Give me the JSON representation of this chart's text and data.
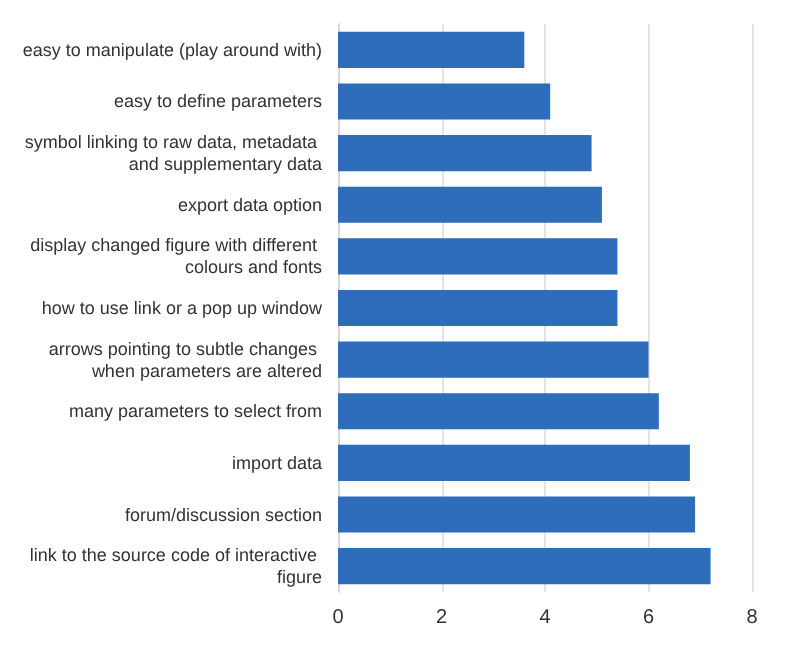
{
  "chart_data": {
    "type": "bar",
    "orientation": "horizontal",
    "categories": [
      "easy to manipulate (play around with)",
      "easy to define parameters",
      "symbol linking to raw data, metadata and supplementary data",
      "export data option",
      "display changed figure with different colours and fonts",
      "how to use link or a pop up window",
      "arrows pointing to subtle changes when parameters are altered",
      "many parameters to select from",
      "import data",
      "forum/discussion section",
      "link to the source code of interactive figure"
    ],
    "values": [
      3.6,
      4.1,
      4.9,
      5.1,
      5.4,
      5.4,
      6.0,
      6.2,
      6.8,
      6.9,
      7.2
    ],
    "color": "#2e6db9",
    "xlim": [
      0,
      8
    ],
    "xticks": [
      0,
      2,
      4,
      6,
      8
    ],
    "grid": "x"
  }
}
